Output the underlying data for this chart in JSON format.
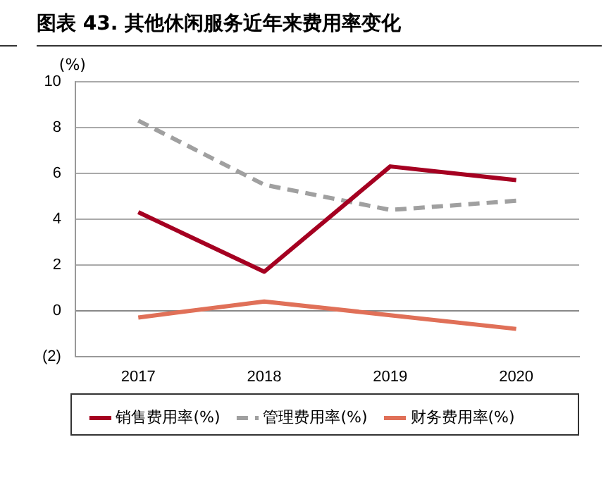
{
  "chart_data": {
    "type": "line",
    "title": "图表 43. 其他休闲服务近年来费用率变化",
    "ylabel": "(%)",
    "categories": [
      "2017",
      "2018",
      "2019",
      "2020"
    ],
    "series": [
      {
        "name": "销售费用率(%)",
        "color": "#a50021",
        "values": [
          4.3,
          1.7,
          6.3,
          5.7
        ]
      },
      {
        "name": "管理费用率(%)",
        "color": "#a0a0a0",
        "values": [
          8.3,
          5.5,
          4.4,
          4.8
        ],
        "line_style": "dashed"
      },
      {
        "name": "财务费用率(%)",
        "color": "#e07058",
        "values": [
          -0.3,
          0.4,
          -0.2,
          -0.8
        ]
      }
    ],
    "ylim": [
      -2,
      10
    ],
    "yticks": [
      {
        "value": -2,
        "label": "(2)"
      },
      0,
      2,
      4,
      6,
      8,
      10
    ],
    "grid": "y",
    "legend": "bottom",
    "marker": "none"
  }
}
